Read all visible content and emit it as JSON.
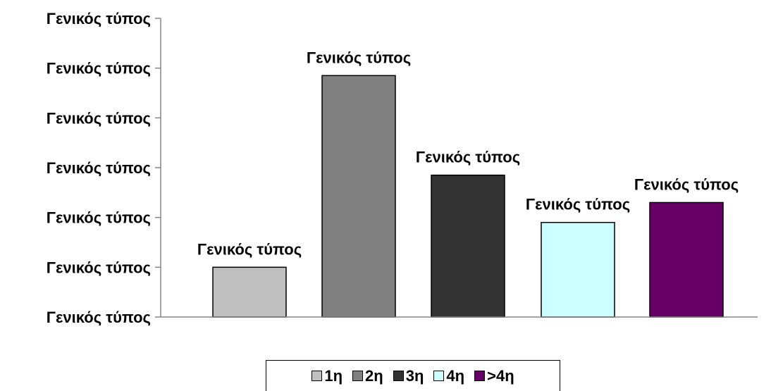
{
  "chart_data": {
    "type": "bar",
    "title": "",
    "xlabel": "",
    "ylabel": "",
    "ylim": [
      0,
      6
    ],
    "grid": false,
    "legend_placement": "bottom",
    "y_tick_labels": [
      "Γενικός τύπος",
      "Γενικός τύπος",
      "Γενικός τύπος",
      "Γενικός τύπος",
      "Γενικός τύπος",
      "Γενικός τύπος",
      "Γενικός τύπος"
    ],
    "series": [
      {
        "name": "1η",
        "value": 1.0,
        "color": "#c0c0c0",
        "data_label": "Γενικός τύπος"
      },
      {
        "name": "2η",
        "value": 4.85,
        "color": "#808080",
        "data_label": "Γενικός τύπος"
      },
      {
        "name": "3η",
        "value": 2.85,
        "color": "#333333",
        "data_label": "Γενικός τύπος"
      },
      {
        "name": "4η",
        "value": 1.9,
        "color": "#ccffff",
        "data_label": "Γενικός τύπος"
      },
      {
        "name": ">4η",
        "value": 2.3,
        "color": "#660066",
        "data_label": "Γενικός τύπος"
      }
    ]
  }
}
